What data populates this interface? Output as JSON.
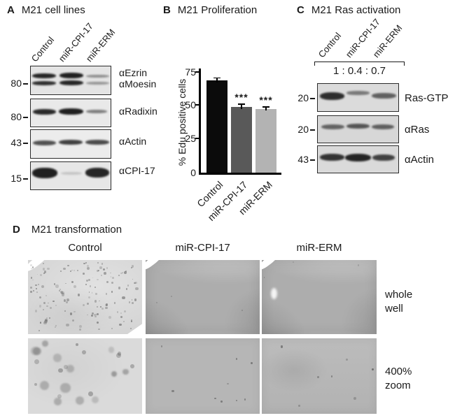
{
  "panels": {
    "a": {
      "label": "A",
      "title": "M21 cell lines",
      "lanes": [
        "Control",
        "miR-CPI-17",
        "miR-ERM"
      ],
      "mw": [
        "80",
        "80",
        "43",
        "15"
      ],
      "antibodies": [
        [
          "αEzrin",
          "αMoesin"
        ],
        [
          "αRadixin"
        ],
        [
          "αActin"
        ],
        [
          "αCPI-17"
        ]
      ]
    },
    "b": {
      "label": "B",
      "title": "M21 Proliferation"
    },
    "c": {
      "label": "C",
      "title": "M21 Ras activation",
      "lanes": [
        "Control",
        "miR-CPI-17",
        "miR-ERM"
      ],
      "ratio": "1 : 0.4 : 0.7",
      "mw": [
        "20",
        "20",
        "43"
      ],
      "antibodies": [
        "Ras-GTP",
        "αRas",
        "αActin"
      ]
    },
    "d": {
      "label": "D",
      "title": "M21 transformation",
      "columns": [
        "Control",
        "miR-CPI-17",
        "miR-ERM"
      ],
      "row_labels": [
        [
          "whole",
          "well"
        ],
        [
          "400%",
          "zoom"
        ]
      ]
    }
  },
  "chart_data": {
    "type": "bar",
    "title": "M21 Proliferation",
    "categories": [
      "Control",
      "miR-CPI-17",
      "miR-ERM"
    ],
    "values": [
      68,
      48.5,
      47
    ],
    "errors": [
      1.5,
      1.5,
      1
    ],
    "significance": [
      "",
      "***",
      "***"
    ],
    "ylabel": "% Edu positive cells",
    "yticks": [
      0,
      25,
      50,
      75
    ],
    "ylim": [
      0,
      75
    ],
    "bar_colors": [
      "#0b0b0b",
      "#595959",
      "#b3b3b3"
    ],
    "legend": "none",
    "grid": false
  }
}
